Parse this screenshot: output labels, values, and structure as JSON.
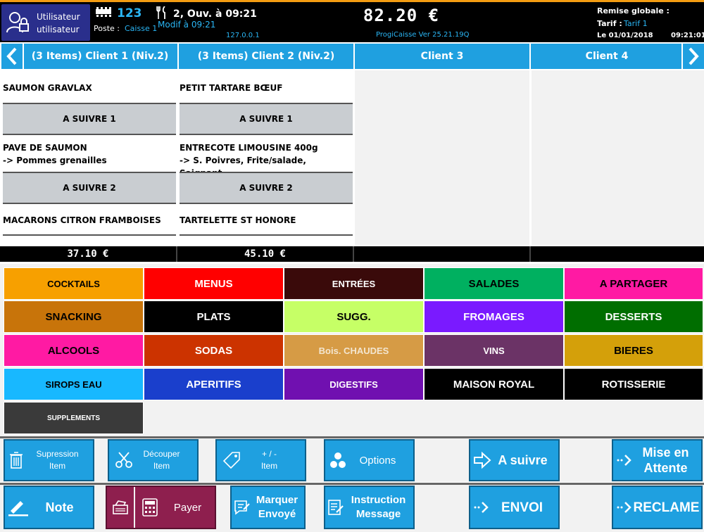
{
  "header": {
    "user_name": "Utilisateur",
    "user_role": "utilisateur",
    "table_number": "123",
    "poste_label": "Poste :",
    "poste_value": "Caisse 1",
    "covers": "2, Ouv.",
    "open_time": "à 09:21",
    "modif": "Modif à 09:21",
    "ip": "127.0.0.1",
    "amount": "82.20 €",
    "version": "ProgiCaisse Ver 25.21.19Q",
    "remise_label": "Remise globale :",
    "tarif_label": "Tarif :",
    "tarif_value": "Tarif 1",
    "date": "Le 01/01/2018",
    "time": "09:21:01"
  },
  "tabs": [
    {
      "label": "(3 Items) Client 1 (Niv.2)"
    },
    {
      "label": "(3 Items) Client 2 (Niv.2)"
    },
    {
      "label": "Client 3"
    },
    {
      "label": "Client 4"
    }
  ],
  "orders": {
    "c1": {
      "item1": "SAUMON GRAVLAX",
      "suivre1": "A SUIVRE 1",
      "item2": "PAVE DE SAUMON",
      "item2_sub": "-> Pommes grenailles",
      "suivre2": "A SUIVRE 2",
      "item3": "MACARONS CITRON FRAMBOISES",
      "total": "37.10 €"
    },
    "c2": {
      "item1": "PETIT TARTARE BŒUF",
      "suivre1": "A SUIVRE 1",
      "item2": "ENTRECOTE LIMOUSINE 400g",
      "item2_sub": "-> S. Poivres,  Frite/salade,  Saignant",
      "suivre2": "A SUIVRE 2",
      "item3": "TARTELETTE ST HONORE",
      "total": "45.10 €"
    }
  },
  "categories": [
    {
      "label": "COCKTAILS",
      "bg": "#f7a000",
      "fg": "#000000"
    },
    {
      "label": "MENUS",
      "bg": "#ff0000",
      "fg": "#ffffff"
    },
    {
      "label": "ENTRÉES",
      "bg": "#3a0a0a",
      "fg": "#ffffff"
    },
    {
      "label": "SALADES",
      "bg": "#00b060",
      "fg": "#000000"
    },
    {
      "label": "A PARTAGER",
      "bg": "#ff1aa3",
      "fg": "#000000"
    },
    {
      "label": "SNACKING",
      "bg": "#c8740a",
      "fg": "#000000"
    },
    {
      "label": "PLATS",
      "bg": "#000000",
      "fg": "#ffffff"
    },
    {
      "label": "SUGG.",
      "bg": "#c6ff66",
      "fg": "#000000"
    },
    {
      "label": "FROMAGES",
      "bg": "#7a1aff",
      "fg": "#ffffff"
    },
    {
      "label": "DESSERTS",
      "bg": "#006e00",
      "fg": "#ffffff"
    },
    {
      "label": "ALCOOLS",
      "bg": "#ff1aa3",
      "fg": "#000000"
    },
    {
      "label": "SODAS",
      "bg": "#cc3300",
      "fg": "#ffffff"
    },
    {
      "label": "Bois. CHAUDES",
      "bg": "#d69b45",
      "fg": "#f3e6d0"
    },
    {
      "label": "VINS",
      "bg": "#6b3366",
      "fg": "#ffffff"
    },
    {
      "label": "BIERES",
      "bg": "#d4a00a",
      "fg": "#000000"
    },
    {
      "label": "SIROPS EAU",
      "bg": "#18b8ff",
      "fg": "#000000"
    },
    {
      "label": "APERITIFS",
      "bg": "#1a3fcc",
      "fg": "#ffffff"
    },
    {
      "label": "DIGESTIFS",
      "bg": "#7010b0",
      "fg": "#ffffff"
    },
    {
      "label": "MAISON ROYAL",
      "bg": "#000000",
      "fg": "#ffffff"
    },
    {
      "label": "ROTISSERIE",
      "bg": "#000000",
      "fg": "#ffffff"
    },
    {
      "label": "SUPPLEMENTS",
      "bg": "#3a3a3a",
      "fg": "#ffffff"
    }
  ],
  "actions": {
    "supprimer_l1": "Supression",
    "supprimer_l2": "Item",
    "decouper_l1": "Découper",
    "decouper_l2": "Item",
    "plusmoins_l1": "+ / -",
    "plusmoins_l2": "Item",
    "options": "Options",
    "asuivre": "A suivre",
    "attente_l1": "Mise en",
    "attente_l2": "Attente",
    "note": "Note",
    "payer": "Payer",
    "marquer_l1": "Marquer",
    "marquer_l2": "Envoyé",
    "instruction_l1": "Instruction",
    "instruction_l2": "Message",
    "envoi": "ENVOI",
    "reclame": "RECLAME"
  },
  "colors": {
    "accent": "#1fa0e0",
    "header_bg": "#000000",
    "user_box": "#2a2f8c",
    "payer_bg": "#8e1f4e"
  }
}
